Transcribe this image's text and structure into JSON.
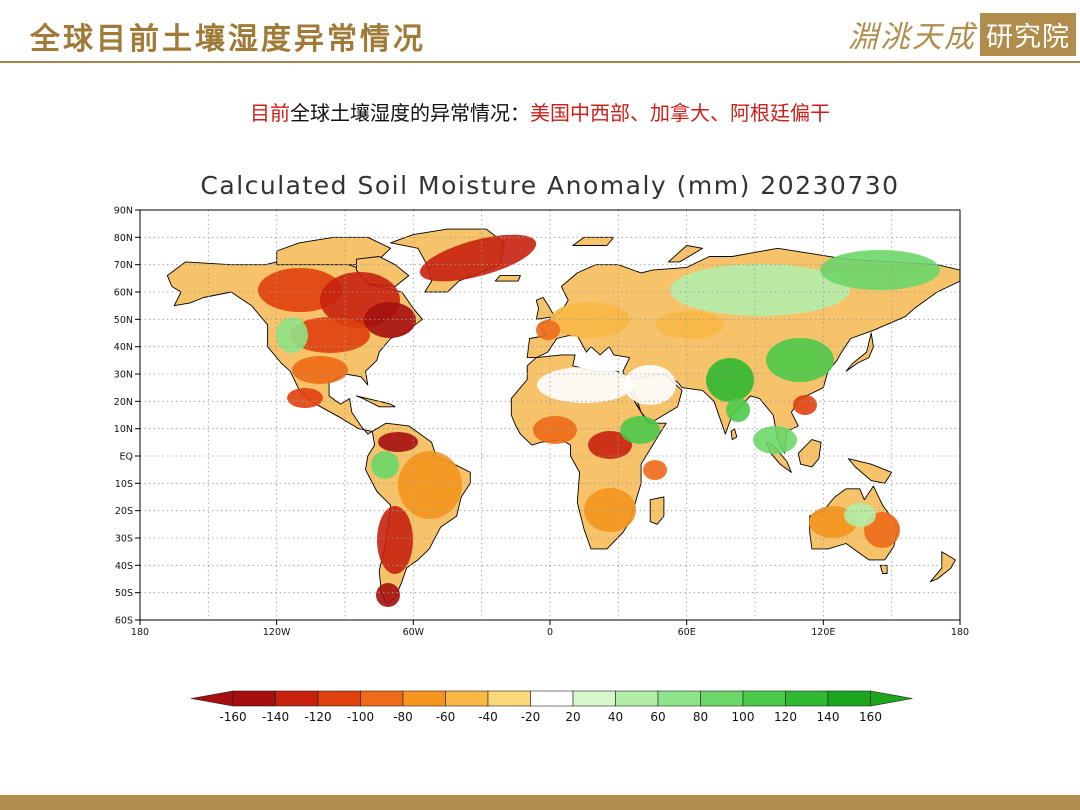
{
  "header": {
    "title": "全球目前土壤湿度异常情况",
    "brand_text": "淵洮天成",
    "brand_box": "研究院"
  },
  "subtitle": {
    "part_red": "目前",
    "part_black": "全球土壤湿度的异常情况：",
    "part_red_2": "美国中西部、加拿大、阿根廷偏干"
  },
  "map": {
    "title": "Calculated Soil Moisture Anomaly (mm) 20230730",
    "lat_labels": [
      "90N",
      "80N",
      "70N",
      "60N",
      "50N",
      "40N",
      "30N",
      "20N",
      "10N",
      "EQ",
      "10S",
      "20S",
      "30S",
      "40S",
      "50S",
      "60S"
    ],
    "lon_labels": [
      "180",
      "120W",
      "60W",
      "0",
      "60E",
      "120E",
      "180"
    ],
    "colors": {
      "ocean": "#ffffff",
      "coast": "#000000",
      "grid": "#9a9a9a"
    },
    "legend": {
      "labels": [
        "-160",
        "-140",
        "-120",
        "-100",
        "-80",
        "-60",
        "-40",
        "-20",
        "20",
        "40",
        "60",
        "80",
        "100",
        "120",
        "140",
        "160"
      ],
      "colors": [
        "#a50f0f",
        "#c8220e",
        "#e0400e",
        "#f06a18",
        "#f5951e",
        "#f9b846",
        "#fbd978",
        "#ffffff",
        "#d4f7cc",
        "#b2eda8",
        "#8fe388",
        "#6cd769",
        "#4bca4a",
        "#2fb930",
        "#1ea51e"
      ]
    }
  }
}
